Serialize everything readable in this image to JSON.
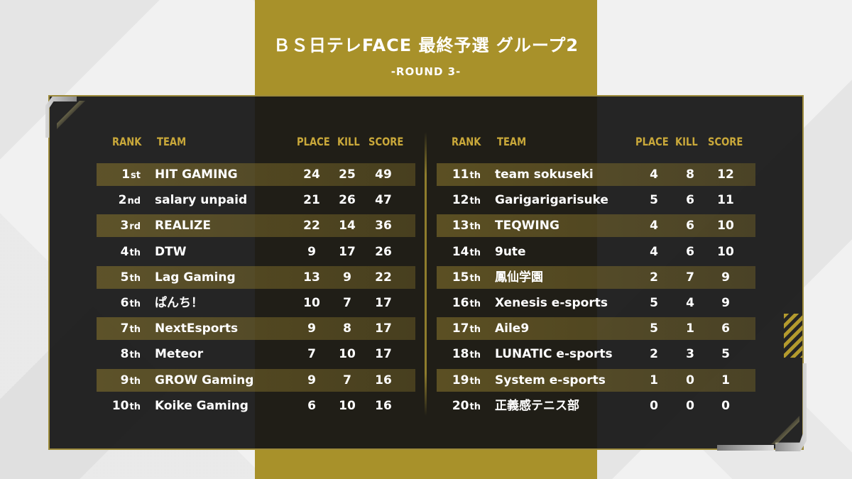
{
  "header": {
    "title": "ＢＳ日テレFACE 最終予選 グループ2",
    "subtitle": "-ROUND 3-"
  },
  "columns": {
    "rank": "RANK",
    "team": "TEAM",
    "place": "PLACE",
    "kill": "KILL",
    "score": "SCORE"
  },
  "left_table": [
    {
      "rank": "1",
      "suffix": "st",
      "team": "HIT GAMING",
      "place": "24",
      "kill": "25",
      "score": "49"
    },
    {
      "rank": "2",
      "suffix": "nd",
      "team": "salary unpaid",
      "place": "21",
      "kill": "26",
      "score": "47"
    },
    {
      "rank": "3",
      "suffix": "rd",
      "team": "REALIZE",
      "place": "22",
      "kill": "14",
      "score": "36"
    },
    {
      "rank": "4",
      "suffix": "th",
      "team": "DTW",
      "place": "9",
      "kill": "17",
      "score": "26"
    },
    {
      "rank": "5",
      "suffix": "th",
      "team": "Lag Gaming",
      "place": "13",
      "kill": "9",
      "score": "22"
    },
    {
      "rank": "6",
      "suffix": "th",
      "team": "ぱんち！",
      "place": "10",
      "kill": "7",
      "score": "17"
    },
    {
      "rank": "7",
      "suffix": "th",
      "team": "NextEsports",
      "place": "9",
      "kill": "8",
      "score": "17"
    },
    {
      "rank": "8",
      "suffix": "th",
      "team": "Meteor",
      "place": "7",
      "kill": "10",
      "score": "17"
    },
    {
      "rank": "9",
      "suffix": "th",
      "team": "GROW Gaming",
      "place": "9",
      "kill": "7",
      "score": "16"
    },
    {
      "rank": "10",
      "suffix": "th",
      "team": "Koike Gaming",
      "place": "6",
      "kill": "10",
      "score": "16"
    }
  ],
  "right_table": [
    {
      "rank": "11",
      "suffix": "th",
      "team": "team sokuseki",
      "place": "4",
      "kill": "8",
      "score": "12"
    },
    {
      "rank": "12",
      "suffix": "th",
      "team": "Garigarigarisuke",
      "place": "5",
      "kill": "6",
      "score": "11"
    },
    {
      "rank": "13",
      "suffix": "th",
      "team": "TEQWING",
      "place": "4",
      "kill": "6",
      "score": "10"
    },
    {
      "rank": "14",
      "suffix": "th",
      "team": "9ute",
      "place": "4",
      "kill": "6",
      "score": "10"
    },
    {
      "rank": "15",
      "suffix": "th",
      "team": "鳳仙学園",
      "place": "2",
      "kill": "7",
      "score": "9"
    },
    {
      "rank": "16",
      "suffix": "th",
      "team": "Xenesis e-sports",
      "place": "5",
      "kill": "4",
      "score": "9"
    },
    {
      "rank": "17",
      "suffix": "th",
      "team": "Aile9",
      "place": "5",
      "kill": "1",
      "score": "6"
    },
    {
      "rank": "18",
      "suffix": "th",
      "team": "LUNATIC e-sports",
      "place": "2",
      "kill": "3",
      "score": "5"
    },
    {
      "rank": "19",
      "suffix": "th",
      "team": "System e-sports",
      "place": "1",
      "kill": "0",
      "score": "1"
    },
    {
      "rank": "20",
      "suffix": "th",
      "team": "正義感テニス部",
      "place": "0",
      "kill": "0",
      "score": "0"
    }
  ],
  "colors": {
    "gold": "#a8912a",
    "header_gold": "#c9a83a",
    "panel": "#161616"
  }
}
